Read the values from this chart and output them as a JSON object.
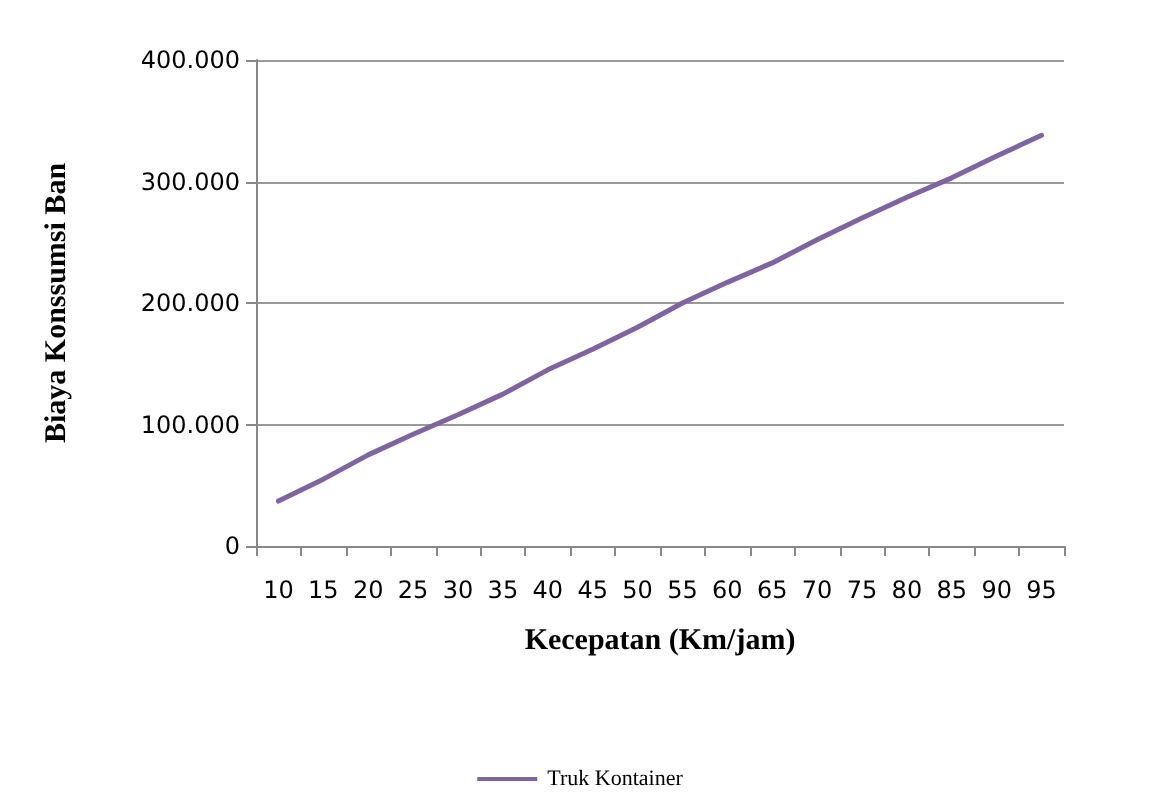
{
  "chart_data": {
    "type": "line",
    "xlabel": "Kecepatan (Km/jam)",
    "ylabel": "Biaya Konssumsi Ban",
    "categories": [
      "10",
      "15",
      "20",
      "25",
      "30",
      "35",
      "40",
      "45",
      "50",
      "55",
      "60",
      "65",
      "70",
      "75",
      "80",
      "85",
      "90",
      "95"
    ],
    "series": [
      {
        "name": "Truk Kontainer",
        "color": "#8064a2",
        "values": [
          37000,
          55000,
          75000,
          92000,
          108000,
          125000,
          145000,
          162000,
          180000,
          200000,
          217000,
          233000,
          252000,
          270000,
          287000,
          303000,
          321000,
          338000
        ]
      }
    ],
    "ylim": [
      0,
      400000
    ],
    "yticks": [
      0,
      {
        "value": 100000,
        "label": "100.000"
      },
      {
        "value": 200000,
        "label": "200.000"
      },
      {
        "value": 300000,
        "label": "300.000"
      },
      {
        "value": 400000,
        "label": "400.000"
      }
    ],
    "grid": "y",
    "legend": "bottom",
    "marker": "none",
    "line_style": "solid"
  }
}
